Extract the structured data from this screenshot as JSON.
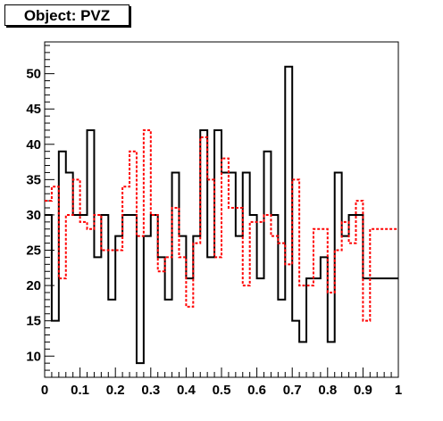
{
  "chart_data": {
    "type": "histogram",
    "title": "Object: PVZ",
    "xlabel": "",
    "ylabel": "",
    "xlim": [
      0,
      1
    ],
    "ylim": [
      7,
      54.5
    ],
    "grid": false,
    "legend": "none",
    "bin_width": 0.02,
    "x_ticks": [
      0,
      0.1,
      0.2,
      0.3,
      0.4,
      0.5,
      0.6,
      0.7,
      0.8,
      0.9,
      1
    ],
    "x_tick_labels": [
      "0",
      "0.1",
      "0.2",
      "0.3",
      "0.4",
      "0.5",
      "0.6",
      "0.7",
      "0.8",
      "0.9",
      "1"
    ],
    "y_ticks": [
      10,
      15,
      20,
      25,
      30,
      35,
      40,
      45,
      50
    ],
    "y_tick_labels": [
      "10",
      "15",
      "20",
      "25",
      "30",
      "35",
      "40",
      "45",
      "50"
    ],
    "series": [
      {
        "color": "#000000",
        "style": "solid",
        "values": [
          30,
          15,
          39,
          36,
          30,
          30,
          42,
          24,
          30,
          18,
          27,
          30,
          30,
          9,
          27,
          30,
          24,
          18,
          36,
          27,
          21,
          27,
          42,
          24,
          42,
          36,
          36,
          27,
          36,
          30,
          21,
          39,
          30,
          18,
          51,
          15,
          12,
          21,
          21,
          24,
          12,
          36,
          27,
          30,
          30,
          21,
          21,
          21,
          21,
          21
        ]
      },
      {
        "color": "#ff0000",
        "style": "dashed",
        "values": [
          32,
          34,
          21,
          30,
          35,
          29,
          28,
          30,
          25,
          25,
          25,
          34,
          39,
          27,
          42,
          30,
          22,
          24,
          31,
          24,
          17,
          26,
          41,
          35,
          24,
          38,
          31,
          31,
          20,
          29,
          29,
          30,
          27,
          26,
          23,
          35,
          20,
          20,
          28,
          28,
          19,
          25,
          29,
          26,
          32,
          15,
          28,
          28,
          28,
          28
        ]
      }
    ]
  }
}
